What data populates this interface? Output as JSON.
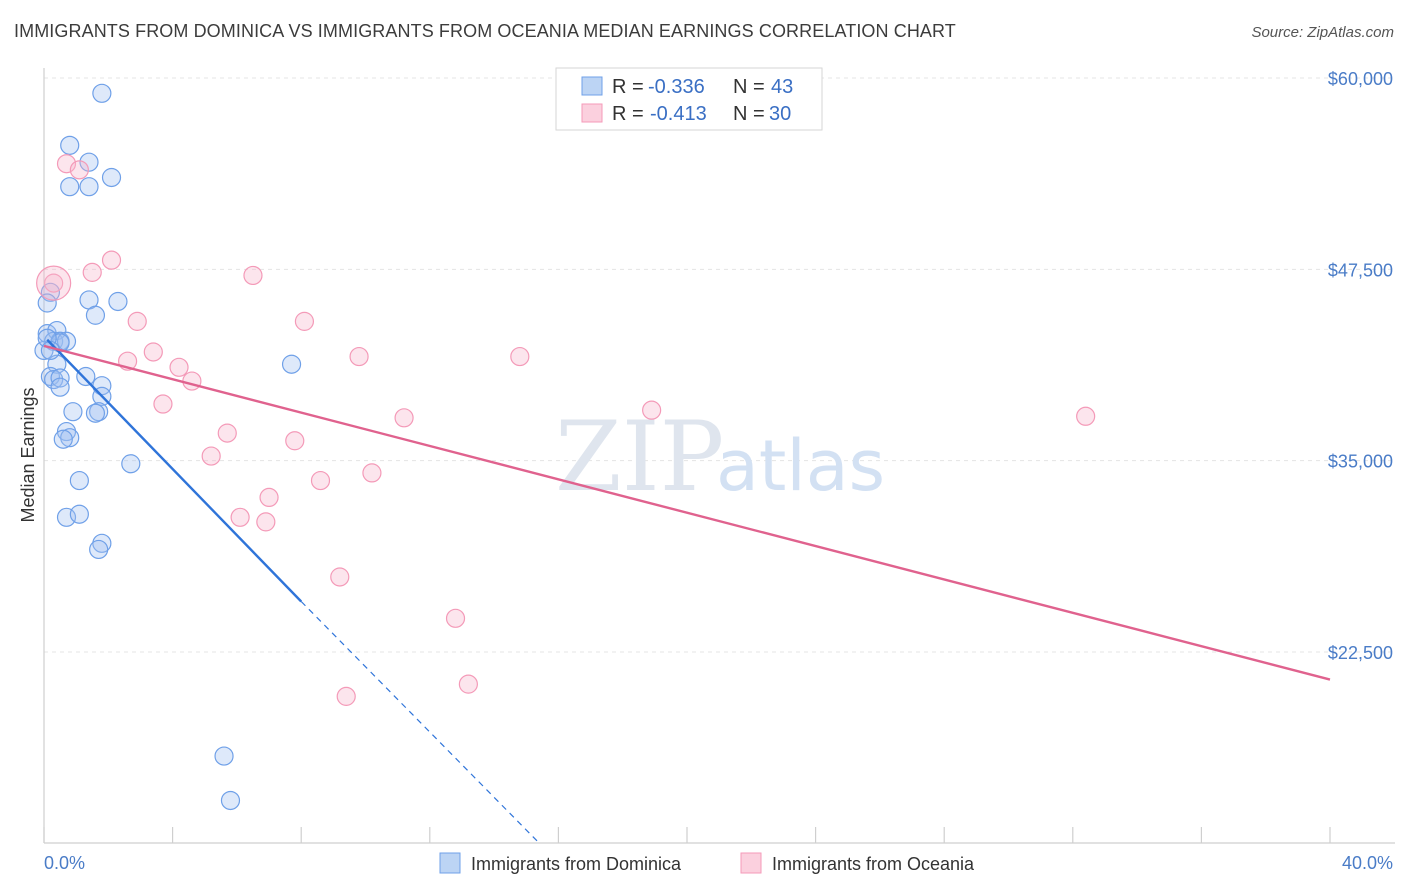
{
  "header": {
    "title": "IMMIGRANTS FROM DOMINICA VS IMMIGRANTS FROM OCEANIA MEDIAN EARNINGS CORRELATION CHART",
    "source": "Source: ZipAtlas.com"
  },
  "watermark": {
    "zip": "ZIP",
    "atlas": "atlas"
  },
  "legend": {
    "r_label": "R =",
    "n_label": "N =",
    "entries": [
      {
        "r": "-0.336",
        "n": "43"
      },
      {
        "r": "-0.413",
        "n": "30"
      }
    ]
  },
  "chart_data": {
    "type": "scatter",
    "title": "IMMIGRANTS FROM DOMINICA VS IMMIGRANTS FROM OCEANIA MEDIAN EARNINGS CORRELATION CHART",
    "ylabel": "Median Earnings",
    "xlim": [
      0,
      40
    ],
    "ylim": [
      12000,
      62500
    ],
    "x_tick_labels": [
      "0.0%",
      "40.0%"
    ],
    "y_ticks": [
      22500,
      35000,
      47500,
      60000
    ],
    "y_tick_labels": [
      "$22,500",
      "$35,000",
      "$47,500",
      "$60,000"
    ],
    "grid": true,
    "legend_position": "top-center",
    "series": [
      {
        "name": "Immigrants from Dominica",
        "color": "#6fa0e8",
        "line_color": "#2f74d9",
        "r": -0.336,
        "n": 43,
        "points": [
          [
            1.8,
            59.0
          ],
          [
            0.8,
            55.6
          ],
          [
            1.4,
            54.5
          ],
          [
            2.1,
            53.5
          ],
          [
            0.8,
            52.9
          ],
          [
            1.4,
            52.9
          ],
          [
            0.2,
            46.0
          ],
          [
            0.1,
            45.3
          ],
          [
            1.4,
            45.5
          ],
          [
            2.3,
            45.4
          ],
          [
            1.6,
            44.5
          ],
          [
            0.1,
            43.3
          ],
          [
            0.4,
            43.5
          ],
          [
            0.3,
            42.8
          ],
          [
            0.5,
            42.8
          ],
          [
            0.7,
            42.8
          ],
          [
            0.5,
            42.7
          ],
          [
            0.0,
            42.2
          ],
          [
            0.4,
            41.3
          ],
          [
            0.2,
            40.5
          ],
          [
            0.3,
            40.3
          ],
          [
            0.5,
            40.4
          ],
          [
            0.5,
            39.8
          ],
          [
            1.3,
            40.5
          ],
          [
            1.8,
            39.9
          ],
          [
            1.8,
            39.2
          ],
          [
            1.7,
            38.2
          ],
          [
            0.9,
            38.2
          ],
          [
            1.6,
            38.1
          ],
          [
            0.7,
            36.9
          ],
          [
            0.8,
            36.5
          ],
          [
            0.6,
            36.4
          ],
          [
            2.7,
            34.8
          ],
          [
            1.1,
            33.7
          ],
          [
            0.7,
            31.3
          ],
          [
            1.1,
            31.5
          ],
          [
            1.8,
            29.6
          ],
          [
            1.7,
            29.2
          ],
          [
            7.7,
            41.3
          ],
          [
            5.6,
            15.7
          ],
          [
            5.8,
            12.8
          ],
          [
            0.1,
            43.0
          ],
          [
            0.2,
            42.2
          ]
        ]
      },
      {
        "name": "Immigrants from Oceania",
        "color": "#f49ab8",
        "line_color": "#e0628e",
        "r": -0.413,
        "n": 30,
        "points": [
          [
            0.3,
            46.6
          ],
          [
            0.7,
            54.4
          ],
          [
            1.1,
            54.0
          ],
          [
            2.1,
            48.1
          ],
          [
            1.5,
            47.3
          ],
          [
            6.5,
            47.1
          ],
          [
            2.9,
            44.1
          ],
          [
            8.1,
            44.1
          ],
          [
            3.4,
            42.1
          ],
          [
            9.8,
            41.8
          ],
          [
            14.8,
            41.8
          ],
          [
            2.6,
            41.5
          ],
          [
            4.2,
            41.1
          ],
          [
            4.6,
            40.2
          ],
          [
            3.7,
            38.7
          ],
          [
            11.2,
            37.8
          ],
          [
            18.9,
            38.3
          ],
          [
            32.4,
            37.9
          ],
          [
            5.7,
            36.8
          ],
          [
            7.8,
            36.3
          ],
          [
            5.2,
            35.3
          ],
          [
            10.2,
            34.2
          ],
          [
            8.6,
            33.7
          ],
          [
            7.0,
            32.6
          ],
          [
            6.1,
            31.3
          ],
          [
            6.9,
            31.0
          ],
          [
            9.2,
            27.4
          ],
          [
            12.8,
            24.7
          ],
          [
            13.2,
            20.4
          ],
          [
            9.4,
            19.6
          ]
        ]
      }
    ],
    "trend_lines": [
      {
        "series": "Immigrants from Dominica",
        "x": [
          0.1,
          8.0
        ],
        "y": [
          42.9,
          25.8
        ],
        "dashed_to": [
          15.4,
          10.0
        ]
      },
      {
        "series": "Immigrants from Oceania",
        "x": [
          0.0,
          40.0
        ],
        "y": [
          42.5,
          20.7
        ]
      }
    ]
  }
}
